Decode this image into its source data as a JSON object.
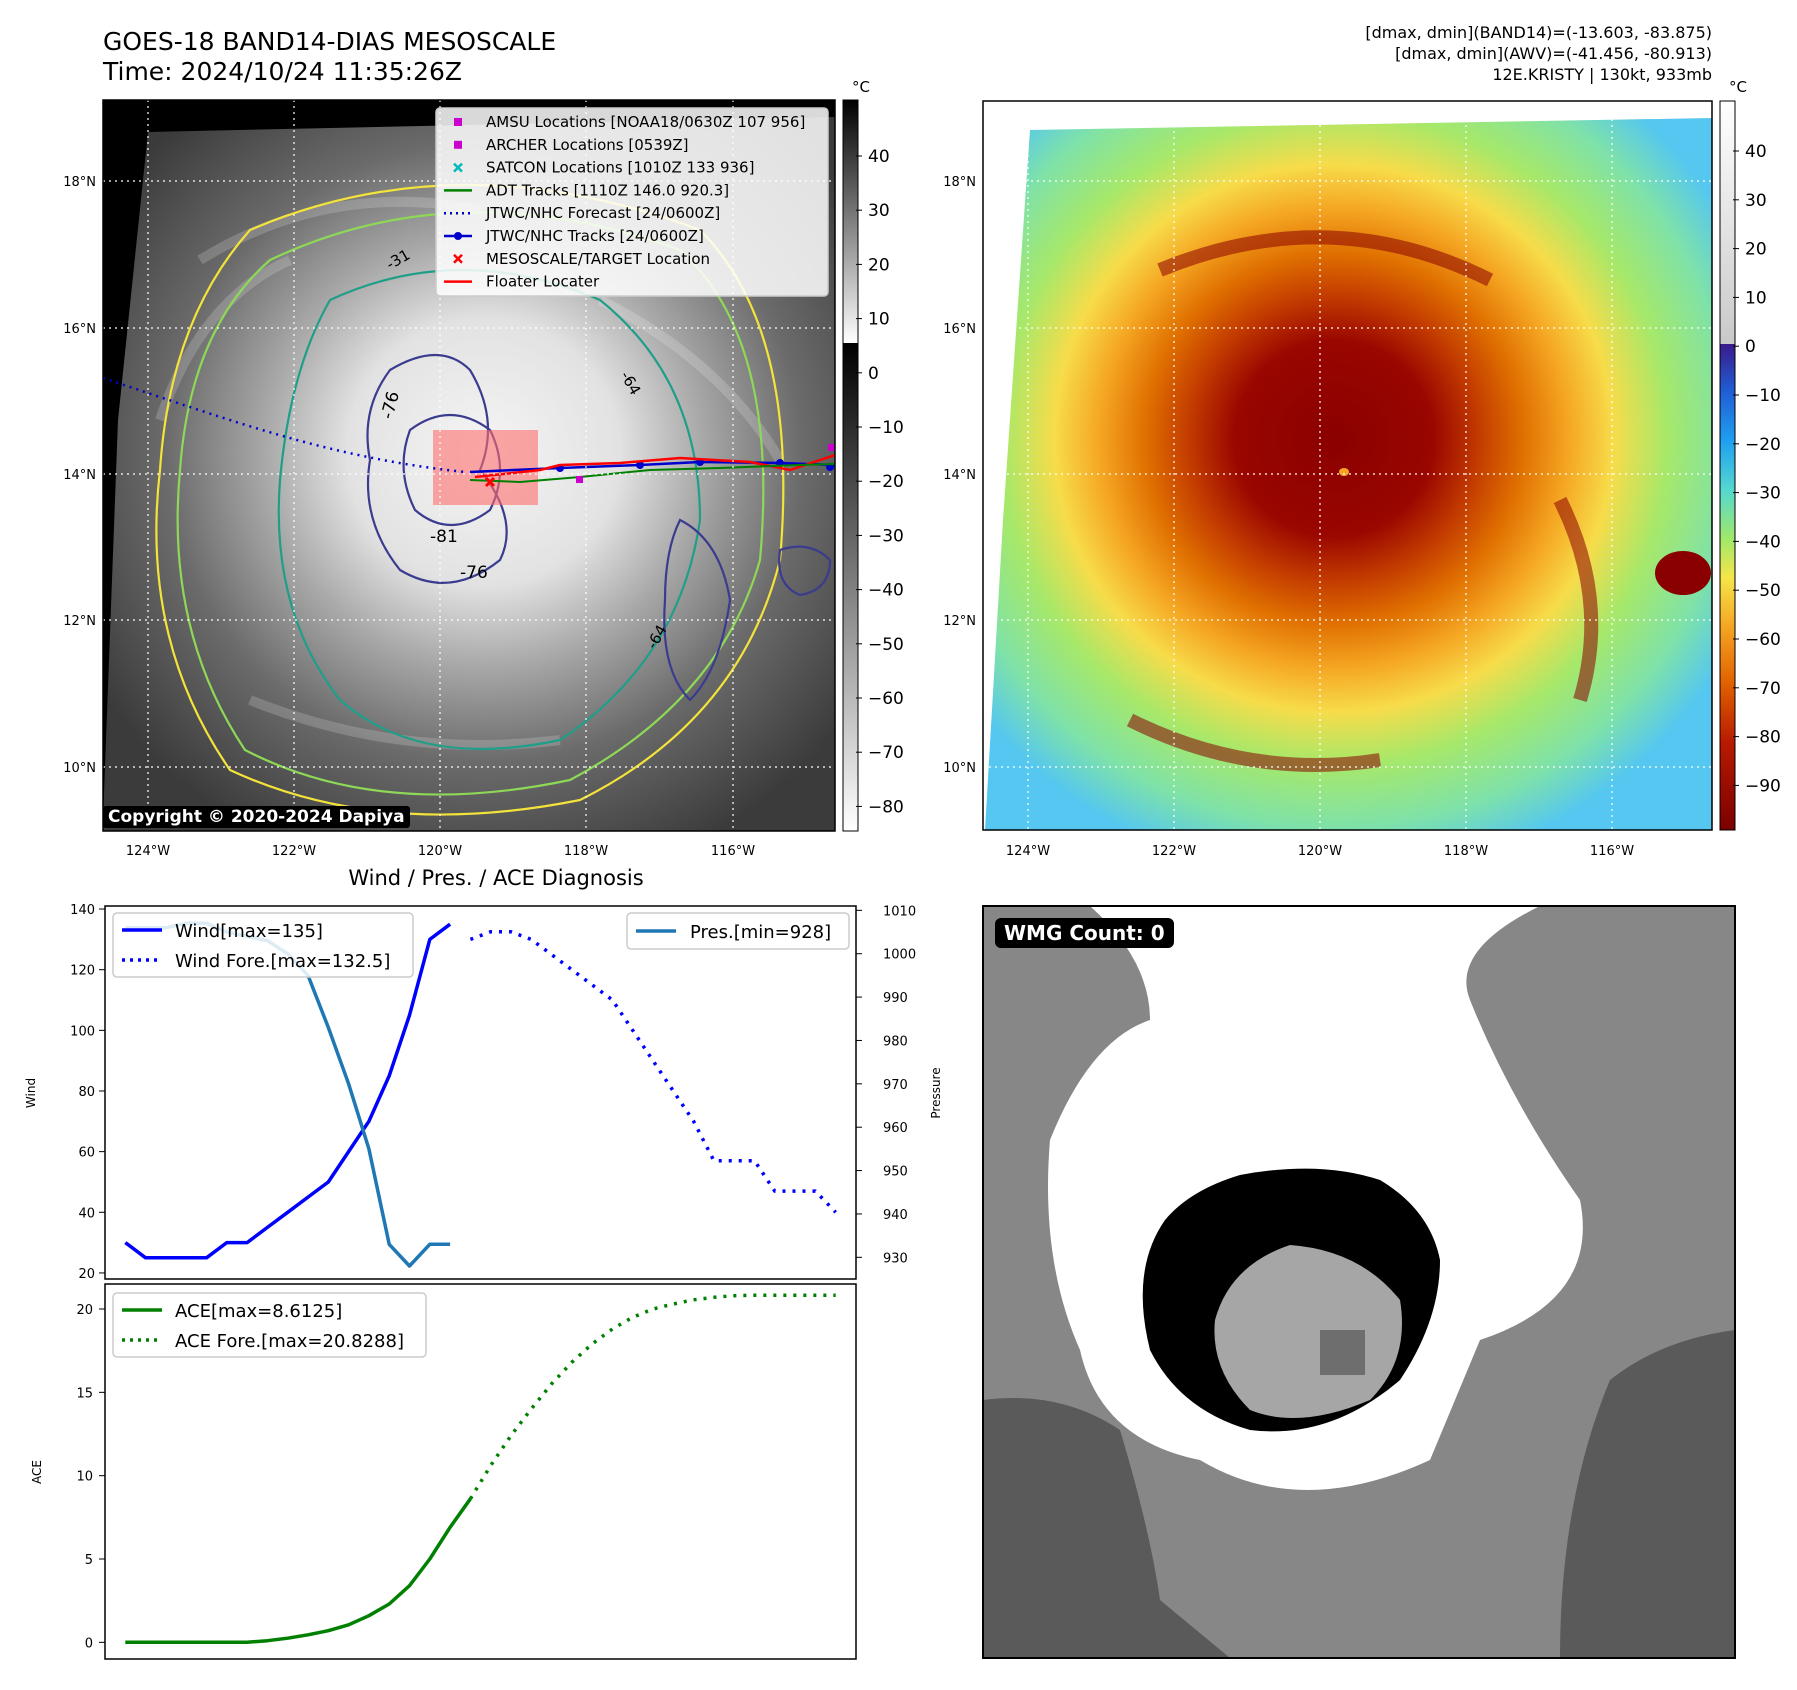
{
  "header": {
    "title_line1": "GOES-18 BAND14-DIAS MESOSCALE",
    "title_line2": "Time: 2024/10/24 11:35:26Z",
    "info_line1": "[dmax, dmin](BAND14)=(-13.603, -83.875)",
    "info_line2": "[dmax, dmin](AWV)=(-41.456, -80.913)",
    "info_line3": "12E.KRISTY | 130kt, 933mb"
  },
  "ir_panel": {
    "lat_labels": [
      "18°N",
      "16°N",
      "14°N",
      "12°N",
      "10°N"
    ],
    "lon_labels": [
      "124°W",
      "122°W",
      "120°W",
      "118°W",
      "116°W"
    ],
    "copyright": "Copyright © 2020-2024 Dapiya",
    "contour_labels": [
      "-76",
      "-81",
      "-76",
      "-64",
      "-31",
      "-64"
    ],
    "legend": [
      {
        "label": "AMSU Locations [NOAA18/0630Z 107 956]",
        "color": "#cc00cc",
        "kind": "square"
      },
      {
        "label": "ARCHER Locations [0539Z]",
        "color": "#cc00cc",
        "kind": "square"
      },
      {
        "label": "SATCON Locations [1010Z 133 936]",
        "color": "#00bbbb",
        "kind": "x"
      },
      {
        "label": "ADT Tracks [1110Z 146.0 920.3]",
        "color": "#008000",
        "kind": "line"
      },
      {
        "label": "JTWC/NHC Forecast [24/0600Z]",
        "color": "#0000cc",
        "kind": "dotted"
      },
      {
        "label": "JTWC/NHC Tracks [24/0600Z]",
        "color": "#0000cc",
        "kind": "linedot"
      },
      {
        "label": "MESOSCALE/TARGET Location",
        "color": "#ff0000",
        "kind": "x"
      },
      {
        "label": "Floater Locater",
        "color": "#ff0000",
        "kind": "line"
      }
    ],
    "colorbar_unit": "°C",
    "colorbar_ticks": [
      "40",
      "30",
      "20",
      "10",
      "0",
      "−10",
      "−20",
      "−30",
      "−40",
      "−50",
      "−60",
      "−70",
      "−80"
    ]
  },
  "awv_panel": {
    "lat_labels": [
      "18°N",
      "16°N",
      "14°N",
      "12°N",
      "10°N"
    ],
    "lon_labels": [
      "124°W",
      "122°W",
      "120°W",
      "118°W",
      "116°W"
    ],
    "colorbar_unit": "°C",
    "colorbar_ticks": [
      "40",
      "30",
      "20",
      "10",
      "0",
      "−10",
      "−20",
      "−30",
      "−40",
      "−50",
      "−60",
      "−70",
      "−80",
      "−90"
    ]
  },
  "wmg_panel": {
    "badge": "WMG Count: 0"
  },
  "chart_data": [
    {
      "type": "line",
      "title": "Wind / Pres. / ACE Diagnosis",
      "ylabel": "Wind",
      "y2label": "Pressure",
      "ylim": [
        18,
        141
      ],
      "y2lim": [
        925,
        1011
      ],
      "xlim": [
        -1,
        36
      ],
      "yticks": [
        "140",
        "120",
        "100",
        "80",
        "60",
        "40",
        "20"
      ],
      "y2ticks": [
        "1010",
        "1000",
        "990",
        "980",
        "970",
        "960",
        "950",
        "940",
        "930"
      ],
      "series": [
        {
          "name": "Wind[max=135]",
          "color": "#0000ff",
          "style": "solid",
          "x": [
            0,
            1,
            2,
            3,
            4,
            5,
            6,
            7,
            8,
            9,
            10,
            11,
            12,
            13,
            14,
            15,
            16
          ],
          "y": [
            30,
            25,
            25,
            25,
            25,
            30,
            30,
            35,
            40,
            45,
            50,
            60,
            70,
            85,
            105,
            130,
            135
          ]
        },
        {
          "name": "Wind Fore.[max=132.5]",
          "color": "#0000ff",
          "style": "dotted",
          "x": [
            17,
            18,
            19,
            20,
            21,
            22,
            23,
            24,
            25,
            26,
            27,
            28,
            29,
            30,
            31,
            32,
            33,
            34,
            35
          ],
          "y": [
            130,
            132.5,
            132.5,
            130,
            125,
            120,
            115,
            110,
            100,
            90,
            80,
            70,
            57,
            57,
            57,
            47,
            47,
            47,
            40
          ]
        },
        {
          "name": "Pres.[min=928]",
          "color": "#1f77b4",
          "style": "solid",
          "axis": "right",
          "x": [
            0,
            1,
            2,
            3,
            4,
            5,
            6,
            7,
            8,
            9,
            10,
            11,
            12,
            13,
            14,
            15,
            16
          ],
          "y": [
            1006,
            1006,
            1006,
            1007,
            1007,
            1005,
            1004,
            1003,
            1000,
            995,
            983,
            970,
            955,
            933,
            928,
            933,
            933
          ]
        }
      ]
    },
    {
      "type": "line",
      "ylabel": "ACE",
      "ylim": [
        -1,
        21.5
      ],
      "xlim": [
        -1,
        36
      ],
      "yticks": [
        "20",
        "15",
        "10",
        "5",
        "0"
      ],
      "series": [
        {
          "name": "ACE[max=8.6125]",
          "color": "#008000",
          "style": "solid",
          "x": [
            0,
            1,
            2,
            3,
            4,
            5,
            6,
            7,
            8,
            9,
            10,
            11,
            12,
            13,
            14,
            15,
            16,
            17
          ],
          "y": [
            0,
            0,
            0,
            0,
            0,
            0,
            0,
            0.1,
            0.25,
            0.45,
            0.7,
            1.05,
            1.6,
            2.3,
            3.4,
            5.0,
            6.9,
            8.6125
          ]
        },
        {
          "name": "ACE Fore.[max=20.8288]",
          "color": "#008000",
          "style": "dotted",
          "x": [
            17,
            18,
            19,
            20,
            21,
            22,
            23,
            24,
            25,
            26,
            27,
            28,
            29,
            30,
            31,
            32,
            33,
            34,
            35
          ],
          "y": [
            8.6125,
            10.6,
            12.4,
            14.0,
            15.5,
            16.8,
            17.9,
            18.8,
            19.5,
            20.0,
            20.3,
            20.55,
            20.7,
            20.8,
            20.8288,
            20.8288,
            20.8288,
            20.8288,
            20.8288
          ]
        }
      ]
    }
  ]
}
